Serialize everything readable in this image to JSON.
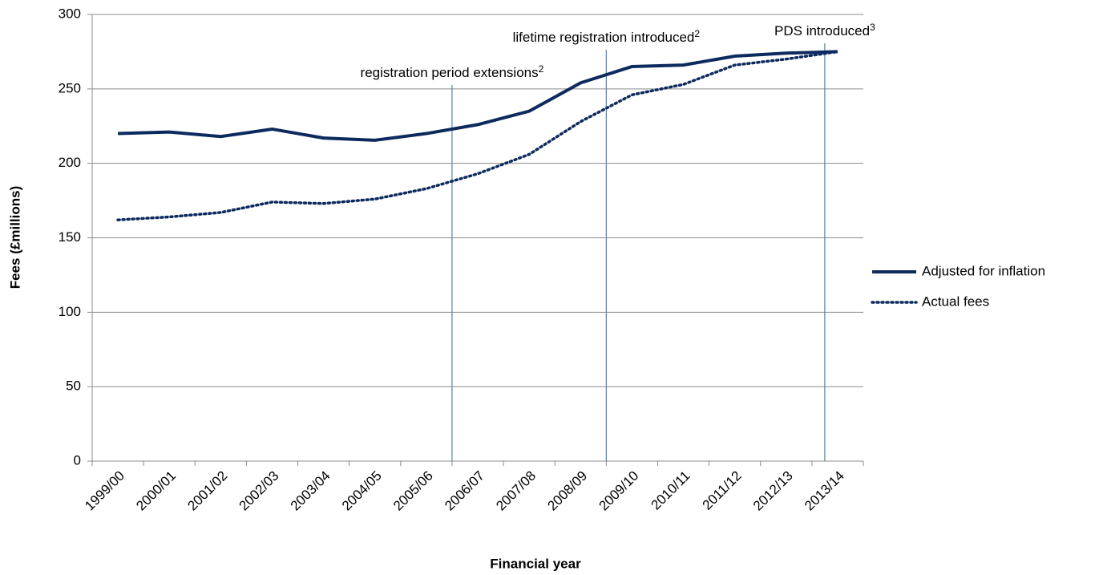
{
  "chart_data": {
    "type": "line",
    "xlabel": "Financial year",
    "ylabel": "Fees (£millions)",
    "categories": [
      "1999/00",
      "2000/01",
      "2001/02",
      "2002/03",
      "2003/04",
      "2004/05",
      "2005/06",
      "2006/07",
      "2007/08",
      "2008/09",
      "2009/10",
      "2010/11",
      "2011/12",
      "2012/13",
      "2013/14"
    ],
    "series": [
      {
        "name": "Adjusted for inflation",
        "color": "#0d2a5e",
        "style": "solid",
        "values": [
          220,
          221,
          218,
          223,
          217,
          215.5,
          220,
          226,
          235,
          254,
          265,
          266,
          272,
          274,
          275
        ]
      },
      {
        "name": "Actual fees",
        "color": "#0d2a5e",
        "style": "dotted",
        "values": [
          162,
          164,
          167,
          174,
          173,
          176,
          183,
          193,
          206,
          228,
          246,
          253,
          266,
          270,
          275
        ]
      }
    ],
    "ylim": [
      0,
      300
    ],
    "yticks": [
      0,
      50,
      100,
      150,
      200,
      250,
      300
    ],
    "grid": true,
    "legend": "right",
    "annotations": [
      {
        "text": "registration period extensions",
        "superscript": "2",
        "x": 6.5,
        "color": "#4f81bd"
      },
      {
        "text": "lifetime registration introduced",
        "superscript": "2",
        "x": 9.5,
        "color": "#4f81bd"
      },
      {
        "text": "PDS introduced",
        "superscript": "3",
        "x": 13.75,
        "color": "#4f81bd"
      }
    ]
  }
}
